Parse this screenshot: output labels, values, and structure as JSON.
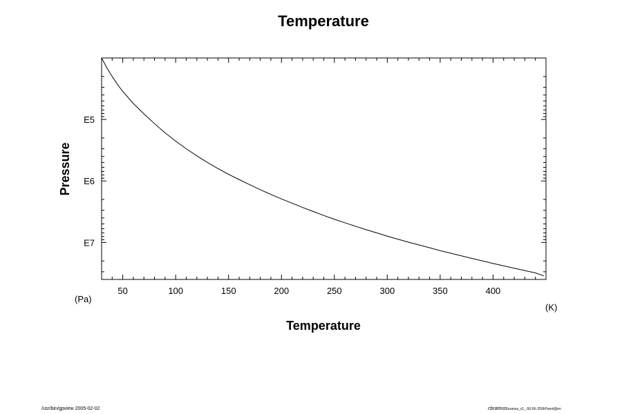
{
  "chart_data": {
    "type": "line",
    "title": "Temperature",
    "xlabel": "Temperature",
    "ylabel": "Pressure",
    "x_unit": "(K)",
    "y_unit": "(Pa)",
    "xlim": [
      30,
      450
    ],
    "ylim": [
      10000,
      40000000
    ],
    "y_scale": "log",
    "y_inverted": true,
    "grid": false,
    "x_ticks": [
      {
        "value": 50,
        "label": "50"
      },
      {
        "value": 100,
        "label": "100"
      },
      {
        "value": 150,
        "label": "150"
      },
      {
        "value": 200,
        "label": "200"
      },
      {
        "value": 250,
        "label": "250"
      },
      {
        "value": 300,
        "label": "300"
      },
      {
        "value": 350,
        "label": "350"
      },
      {
        "value": 400,
        "label": "400"
      }
    ],
    "y_ticks": [
      {
        "value": 100000,
        "label": "E5"
      },
      {
        "value": 1000000,
        "label": "E6"
      },
      {
        "value": 10000000,
        "label": "E7"
      }
    ],
    "series": [
      {
        "x": [
          30,
          35,
          40,
          45,
          50,
          60,
          70,
          80,
          90,
          100,
          110,
          120,
          130,
          140,
          150,
          160,
          170,
          180,
          190,
          200,
          210,
          220,
          230,
          240,
          250,
          260,
          270,
          280,
          290,
          300,
          310,
          320,
          330,
          340,
          350,
          360,
          370,
          380,
          390,
          400,
          410,
          420,
          430,
          440,
          448
        ],
        "y": [
          10000,
          14500,
          20000,
          27000,
          35000,
          55000,
          81000,
          117000,
          165000,
          225000,
          300000,
          390000,
          500000,
          630000,
          780000,
          950000,
          1150000,
          1390000,
          1660000,
          1960000,
          2300000,
          2700000,
          3140000,
          3650000,
          4200000,
          4800000,
          5460000,
          6200000,
          7000000,
          7900000,
          8850000,
          9900000,
          11000000,
          12200000,
          13600000,
          15000000,
          16500000,
          18200000,
          20000000,
          22000000,
          24000000,
          26300000,
          28700000,
          31300000,
          35000000
        ]
      }
    ]
  },
  "footer": {
    "left": "/usr/bin/gpview 2005-02-02",
    "right_main": "cbratmos",
    "right_sub": "uranus_x1_-50.0K-250hPanol@en"
  }
}
